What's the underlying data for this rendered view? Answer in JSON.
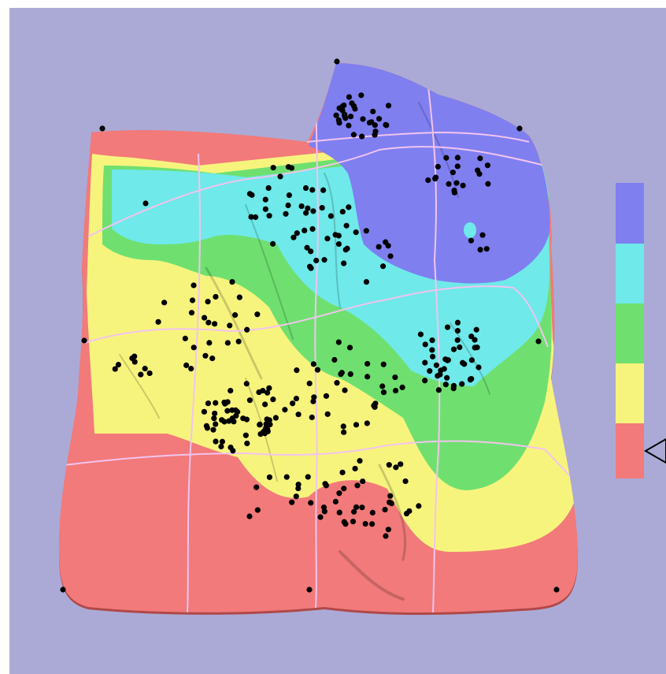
{
  "colors": {
    "background": "#abaad6",
    "surface_bands": [
      "#f27a7a",
      "#f7f47e",
      "#6fe06f",
      "#6fe9e9",
      "#7f7ff0"
    ],
    "grid_line": "#f2c4ef",
    "point": "#000000",
    "edge_shadow": "#b04848"
  },
  "legend": {
    "bands": [
      "#7f7ff0",
      "#6fe9e9",
      "#6fe06f",
      "#f7f47e",
      "#f27a7a"
    ],
    "selected_band_index": 4
  }
}
